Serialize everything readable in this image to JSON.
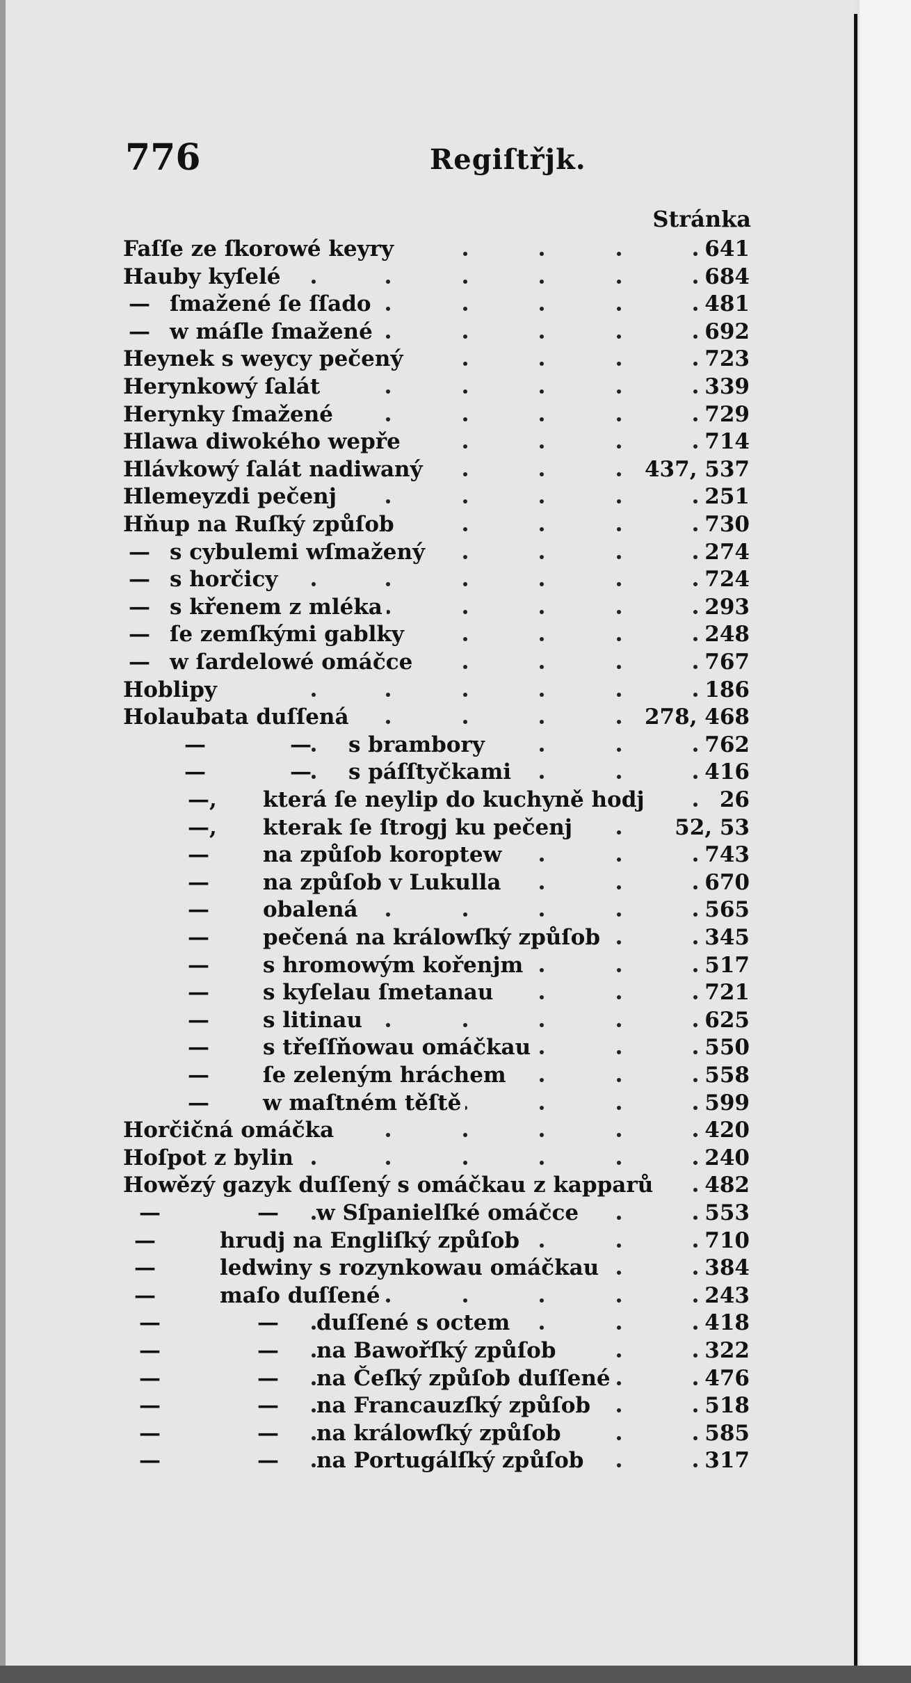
{
  "header": {
    "page_number": "776",
    "title": "Regiſtřjk.",
    "column_heading": "Stránka"
  },
  "entries": [
    {
      "level": 0,
      "text": "Faſſe ze ſkorowé keyry",
      "pages": "641"
    },
    {
      "level": 0,
      "text": "Hauby kyſelé",
      "pages": "684"
    },
    {
      "level": 1,
      "prefix": "—",
      "text": "ſmažené ſe ſſado",
      "pages": "481"
    },
    {
      "level": 1,
      "prefix": "—",
      "text": "w máſle ſmažené",
      "pages": "692"
    },
    {
      "level": 0,
      "text": "Heynek s weycy pečený",
      "pages": "723"
    },
    {
      "level": 0,
      "text": "Herynkowý ſalát",
      "pages": "339"
    },
    {
      "level": 0,
      "text": "Herynky ſmažené",
      "pages": "729"
    },
    {
      "level": 0,
      "text": "Hlawa diwokého wepře",
      "pages": "714"
    },
    {
      "level": 0,
      "text": "Hlávkowý ſalát nadiwaný",
      "pages": "437, 537"
    },
    {
      "level": 0,
      "text": "Hlemeyzdi pečenj",
      "pages": "251"
    },
    {
      "level": 0,
      "text": "Hňup na Ruſký způſob",
      "pages": "730"
    },
    {
      "level": 1,
      "prefix": "—",
      "text": "s cybulemi wſmažený",
      "pages": "274"
    },
    {
      "level": 1,
      "prefix": "—",
      "text": "s horčicy",
      "pages": "724"
    },
    {
      "level": 1,
      "prefix": "—",
      "text": "s křenem z mléka",
      "pages": "293"
    },
    {
      "level": 1,
      "prefix": "—",
      "text": "ſe zemſkými gablky",
      "pages": "248"
    },
    {
      "level": 1,
      "prefix": "—",
      "text": "w ſardelowé omáčce",
      "pages": "767"
    },
    {
      "level": 0,
      "text": "Hoblipy",
      "pages": "186"
    },
    {
      "level": 0,
      "text": "Holaubata duſſená",
      "pages": "278, 468"
    },
    {
      "level": 2,
      "prefix": "—",
      "prefix2": "—",
      "text": "s brambory",
      "pages": "762"
    },
    {
      "level": 2,
      "prefix": "—",
      "prefix2": "—",
      "text": "s páſſtyčkami",
      "pages": "416"
    },
    {
      "level": 3,
      "prefix": "—,",
      "text": "která ſe neylip do kuchyně hodj",
      "pages": "26"
    },
    {
      "level": 3,
      "prefix": "—,",
      "text": "kterak ſe ſtrogj ku pečenj",
      "pages": "52, 53"
    },
    {
      "level": 3,
      "prefix": "—",
      "text": "na způſob koroptew",
      "pages": "743"
    },
    {
      "level": 3,
      "prefix": "—",
      "text": "na způſob v Lukulla",
      "pages": "670"
    },
    {
      "level": 3,
      "prefix": "—",
      "text": "obalená",
      "pages": "565"
    },
    {
      "level": 3,
      "prefix": "—",
      "text": "pečená na králowſký způſob",
      "pages": "345"
    },
    {
      "level": 3,
      "prefix": "—",
      "text": "s hromowým kořenjm",
      "pages": "517"
    },
    {
      "level": 3,
      "prefix": "—",
      "text": "s kyſelau ſmetanau",
      "pages": "721"
    },
    {
      "level": 3,
      "prefix": "—",
      "text": "s litinau",
      "pages": "625"
    },
    {
      "level": 3,
      "prefix": "—",
      "text": "s třeſſňowau omáčkau",
      "pages": "550"
    },
    {
      "level": 3,
      "prefix": "—",
      "text": "ſe zeleným hráchem",
      "pages": "558"
    },
    {
      "level": 3,
      "prefix": "—",
      "text": "w maſtném těſtě",
      "pages": "599"
    },
    {
      "level": 0,
      "text": "Horčičná omáčka",
      "pages": "420"
    },
    {
      "level": 0,
      "text": "Hoſpot z bylin",
      "pages": "240"
    },
    {
      "level": 0,
      "text": "Howězý gazyk duſſený s omáčkau z kapparů",
      "pages": "482"
    },
    {
      "level": 5,
      "prefix": "—",
      "prefix2": "—",
      "text": "w Sſpanielſké omáčce",
      "pages": "553"
    },
    {
      "level": 4,
      "prefix": "—",
      "text": "hrudj na Engliſký způſob",
      "pages": "710"
    },
    {
      "level": 4,
      "prefix": "—",
      "text": "ledwiny s rozynkowau omáčkau",
      "pages": "384"
    },
    {
      "level": 4,
      "prefix": "—",
      "text": "maſo duſſené",
      "pages": "243"
    },
    {
      "level": 5,
      "prefix": "—",
      "prefix2": "—",
      "text": "duſſené s octem",
      "pages": "418"
    },
    {
      "level": 5,
      "prefix": "—",
      "prefix2": "—",
      "text": "na Bawořſký způſob",
      "pages": "322"
    },
    {
      "level": 5,
      "prefix": "—",
      "prefix2": "—",
      "text": "na Čeſký způſob duſſené",
      "pages": "476"
    },
    {
      "level": 5,
      "prefix": "—",
      "prefix2": "—",
      "text": "na Francauzſký způſob",
      "pages": "518"
    },
    {
      "level": 5,
      "prefix": "—",
      "prefix2": "—",
      "text": "na králowſký způſob",
      "pages": "585"
    },
    {
      "level": 5,
      "prefix": "—",
      "prefix2": "—",
      "text": "na Portugálſký způſob",
      "pages": "317"
    }
  ]
}
